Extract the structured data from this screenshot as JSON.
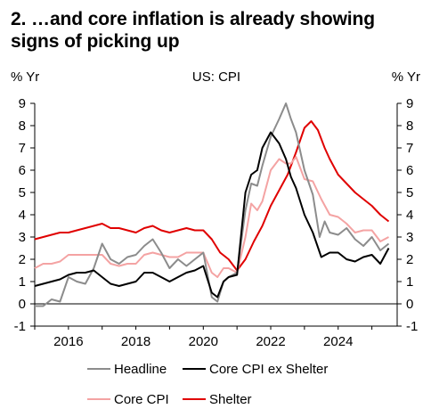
{
  "title": "2. …and core inflation is already showing signs of picking up",
  "chart_data": {
    "type": "line",
    "subtitle": "US: CPI",
    "ylabel_left": "% Yr",
    "ylabel_right": "% Yr",
    "ylim": [
      -1,
      9
    ],
    "yticks": [
      -1,
      0,
      1,
      2,
      3,
      4,
      5,
      6,
      7,
      8,
      9
    ],
    "xlim": [
      2015.0,
      2025.75
    ],
    "xticks": [
      2016,
      2018,
      2020,
      2022,
      2024
    ],
    "grid": false,
    "legend_position": "bottom",
    "series": [
      {
        "name": "Headline",
        "color": "#8c8c8c",
        "points": [
          [
            2015.0,
            -0.1
          ],
          [
            2015.25,
            -0.1
          ],
          [
            2015.5,
            0.2
          ],
          [
            2015.75,
            0.1
          ],
          [
            2016.0,
            1.2
          ],
          [
            2016.25,
            1.0
          ],
          [
            2016.5,
            0.9
          ],
          [
            2016.75,
            1.6
          ],
          [
            2017.0,
            2.7
          ],
          [
            2017.25,
            2.0
          ],
          [
            2017.5,
            1.8
          ],
          [
            2017.75,
            2.1
          ],
          [
            2018.0,
            2.2
          ],
          [
            2018.25,
            2.6
          ],
          [
            2018.5,
            2.9
          ],
          [
            2018.75,
            2.3
          ],
          [
            2019.0,
            1.6
          ],
          [
            2019.25,
            2.0
          ],
          [
            2019.5,
            1.7
          ],
          [
            2019.75,
            2.0
          ],
          [
            2020.0,
            2.3
          ],
          [
            2020.25,
            0.3
          ],
          [
            2020.42,
            0.1
          ],
          [
            2020.6,
            1.0
          ],
          [
            2020.75,
            1.2
          ],
          [
            2021.0,
            1.4
          ],
          [
            2021.25,
            4.2
          ],
          [
            2021.42,
            5.4
          ],
          [
            2021.6,
            5.3
          ],
          [
            2021.75,
            6.2
          ],
          [
            2022.0,
            7.5
          ],
          [
            2022.25,
            8.3
          ],
          [
            2022.45,
            9.0
          ],
          [
            2022.6,
            8.3
          ],
          [
            2022.75,
            7.7
          ],
          [
            2023.0,
            6.0
          ],
          [
            2023.25,
            4.9
          ],
          [
            2023.45,
            3.0
          ],
          [
            2023.6,
            3.7
          ],
          [
            2023.75,
            3.2
          ],
          [
            2024.0,
            3.1
          ],
          [
            2024.25,
            3.4
          ],
          [
            2024.5,
            2.9
          ],
          [
            2024.75,
            2.6
          ],
          [
            2025.0,
            3.0
          ],
          [
            2025.25,
            2.4
          ],
          [
            2025.5,
            2.7
          ]
        ]
      },
      {
        "name": "Core CPI ex Shelter",
        "color": "#000000",
        "points": [
          [
            2015.0,
            0.8
          ],
          [
            2015.25,
            0.9
          ],
          [
            2015.5,
            1.0
          ],
          [
            2015.75,
            1.1
          ],
          [
            2016.0,
            1.3
          ],
          [
            2016.25,
            1.4
          ],
          [
            2016.5,
            1.4
          ],
          [
            2016.75,
            1.5
          ],
          [
            2017.0,
            1.2
          ],
          [
            2017.25,
            0.9
          ],
          [
            2017.5,
            0.8
          ],
          [
            2017.75,
            0.9
          ],
          [
            2018.0,
            1.0
          ],
          [
            2018.25,
            1.4
          ],
          [
            2018.5,
            1.4
          ],
          [
            2018.75,
            1.2
          ],
          [
            2019.0,
            1.0
          ],
          [
            2019.25,
            1.2
          ],
          [
            2019.5,
            1.4
          ],
          [
            2019.75,
            1.5
          ],
          [
            2020.0,
            1.7
          ],
          [
            2020.25,
            0.5
          ],
          [
            2020.42,
            0.3
          ],
          [
            2020.6,
            1.0
          ],
          [
            2020.75,
            1.2
          ],
          [
            2021.0,
            1.3
          ],
          [
            2021.25,
            5.0
          ],
          [
            2021.42,
            5.8
          ],
          [
            2021.6,
            6.0
          ],
          [
            2021.75,
            7.0
          ],
          [
            2022.0,
            7.7
          ],
          [
            2022.25,
            7.2
          ],
          [
            2022.45,
            6.5
          ],
          [
            2022.6,
            5.7
          ],
          [
            2022.75,
            5.2
          ],
          [
            2023.0,
            4.0
          ],
          [
            2023.25,
            3.2
          ],
          [
            2023.5,
            2.1
          ],
          [
            2023.75,
            2.3
          ],
          [
            2024.0,
            2.3
          ],
          [
            2024.25,
            2.0
          ],
          [
            2024.5,
            1.9
          ],
          [
            2024.75,
            2.1
          ],
          [
            2025.0,
            2.2
          ],
          [
            2025.25,
            1.8
          ],
          [
            2025.5,
            2.5
          ]
        ]
      },
      {
        "name": "Core CPI",
        "color": "#f4a3a3",
        "points": [
          [
            2015.0,
            1.6
          ],
          [
            2015.25,
            1.8
          ],
          [
            2015.5,
            1.8
          ],
          [
            2015.75,
            1.9
          ],
          [
            2016.0,
            2.2
          ],
          [
            2016.25,
            2.2
          ],
          [
            2016.5,
            2.2
          ],
          [
            2016.75,
            2.2
          ],
          [
            2017.0,
            2.2
          ],
          [
            2017.25,
            1.8
          ],
          [
            2017.5,
            1.7
          ],
          [
            2017.75,
            1.8
          ],
          [
            2018.0,
            1.8
          ],
          [
            2018.25,
            2.2
          ],
          [
            2018.5,
            2.3
          ],
          [
            2018.75,
            2.2
          ],
          [
            2019.0,
            2.1
          ],
          [
            2019.25,
            2.1
          ],
          [
            2019.5,
            2.3
          ],
          [
            2019.75,
            2.3
          ],
          [
            2020.0,
            2.3
          ],
          [
            2020.25,
            1.4
          ],
          [
            2020.42,
            1.2
          ],
          [
            2020.6,
            1.6
          ],
          [
            2020.75,
            1.6
          ],
          [
            2021.0,
            1.4
          ],
          [
            2021.25,
            3.0
          ],
          [
            2021.42,
            4.5
          ],
          [
            2021.6,
            4.2
          ],
          [
            2021.75,
            4.6
          ],
          [
            2022.0,
            6.0
          ],
          [
            2022.25,
            6.5
          ],
          [
            2022.45,
            6.3
          ],
          [
            2022.6,
            6.3
          ],
          [
            2022.75,
            6.6
          ],
          [
            2023.0,
            5.6
          ],
          [
            2023.25,
            5.5
          ],
          [
            2023.5,
            4.7
          ],
          [
            2023.75,
            4.0
          ],
          [
            2024.0,
            3.9
          ],
          [
            2024.25,
            3.6
          ],
          [
            2024.5,
            3.2
          ],
          [
            2024.75,
            3.3
          ],
          [
            2025.0,
            3.3
          ],
          [
            2025.25,
            2.8
          ],
          [
            2025.5,
            3.0
          ]
        ]
      },
      {
        "name": "Shelter",
        "color": "#e00000",
        "points": [
          [
            2015.0,
            2.9
          ],
          [
            2015.25,
            3.0
          ],
          [
            2015.5,
            3.1
          ],
          [
            2015.75,
            3.2
          ],
          [
            2016.0,
            3.2
          ],
          [
            2016.25,
            3.3
          ],
          [
            2016.5,
            3.4
          ],
          [
            2016.75,
            3.5
          ],
          [
            2017.0,
            3.6
          ],
          [
            2017.25,
            3.4
          ],
          [
            2017.5,
            3.4
          ],
          [
            2017.75,
            3.3
          ],
          [
            2018.0,
            3.2
          ],
          [
            2018.25,
            3.4
          ],
          [
            2018.5,
            3.5
          ],
          [
            2018.75,
            3.3
          ],
          [
            2019.0,
            3.2
          ],
          [
            2019.25,
            3.3
          ],
          [
            2019.5,
            3.4
          ],
          [
            2019.75,
            3.3
          ],
          [
            2020.0,
            3.3
          ],
          [
            2020.25,
            2.9
          ],
          [
            2020.5,
            2.3
          ],
          [
            2020.75,
            2.0
          ],
          [
            2021.0,
            1.5
          ],
          [
            2021.25,
            2.0
          ],
          [
            2021.5,
            2.8
          ],
          [
            2021.75,
            3.5
          ],
          [
            2022.0,
            4.4
          ],
          [
            2022.25,
            5.1
          ],
          [
            2022.5,
            5.8
          ],
          [
            2022.75,
            6.8
          ],
          [
            2023.0,
            7.9
          ],
          [
            2023.2,
            8.2
          ],
          [
            2023.4,
            7.8
          ],
          [
            2023.6,
            7.0
          ],
          [
            2023.75,
            6.5
          ],
          [
            2024.0,
            5.8
          ],
          [
            2024.25,
            5.4
          ],
          [
            2024.5,
            5.0
          ],
          [
            2024.75,
            4.7
          ],
          [
            2025.0,
            4.4
          ],
          [
            2025.25,
            4.0
          ],
          [
            2025.5,
            3.7
          ]
        ]
      }
    ]
  }
}
